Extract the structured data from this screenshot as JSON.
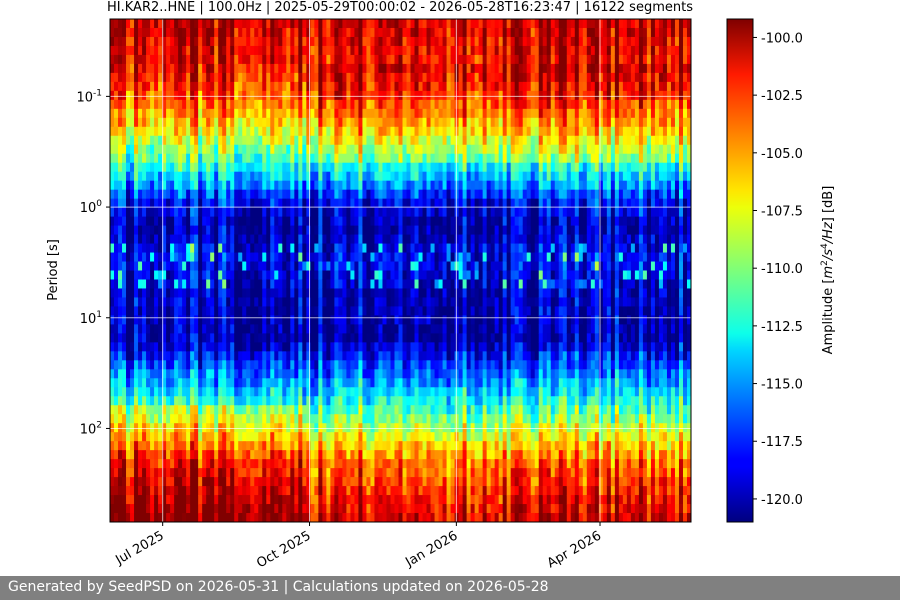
{
  "chart_data": {
    "type": "heatmap",
    "title": "HI.KAR2..HNE | 100.0Hz | 2025-05-29T00:00:02 - 2026-05-28T16:23:47 | 16122 segments",
    "xlabel": "",
    "ylabel": "Period [s]",
    "colorbar_label": "Amplitude [m^2/s^4/Hz] [dB]",
    "colorbar_ticks": [
      "-100.0",
      "-102.5",
      "-105.0",
      "-107.5",
      "-110.0",
      "-112.5",
      "-115.0",
      "-117.5",
      "-120.0"
    ],
    "colorbar_tick_values": [
      -100.0,
      -102.5,
      -105.0,
      -107.5,
      -110.0,
      -112.5,
      -115.0,
      -117.5,
      -120.0
    ],
    "clim": [
      -121,
      -99.2
    ],
    "colormap": "jet",
    "x_range": [
      "2025-05-29",
      "2026-05-28"
    ],
    "x_ticks": [
      {
        "label": "Jul 2025",
        "date": "2025-07-01"
      },
      {
        "label": "Oct 2025",
        "date": "2025-10-01"
      },
      {
        "label": "Jan 2026",
        "date": "2026-01-01"
      },
      {
        "label": "Apr 2026",
        "date": "2026-04-01"
      }
    ],
    "y_scale": "log",
    "y_inverted": true,
    "y_range": [
      0.02,
      700
    ],
    "y_ticks": [
      {
        "label": "10^-1",
        "value": 0.1
      },
      {
        "label": "10^0",
        "value": 1
      },
      {
        "label": "10^1",
        "value": 10
      },
      {
        "label": "10^2",
        "value": 100
      }
    ],
    "grid": true,
    "period_profile_db": [
      {
        "period": 0.02,
        "db": -100.5
      },
      {
        "period": 0.05,
        "db": -101.5
      },
      {
        "period": 0.1,
        "db": -103.5
      },
      {
        "period": 0.2,
        "db": -107.0
      },
      {
        "period": 0.5,
        "db": -113.0
      },
      {
        "period": 0.9,
        "db": -118.0
      },
      {
        "period": 1.5,
        "db": -120.0
      },
      {
        "period": 3.0,
        "db": -118.0
      },
      {
        "period": 6.0,
        "db": -119.5
      },
      {
        "period": 15.0,
        "db": -120.0
      },
      {
        "period": 35.0,
        "db": -115.0
      },
      {
        "period": 80.0,
        "db": -110.0
      },
      {
        "period": 200.0,
        "db": -104.0
      },
      {
        "period": 700.0,
        "db": -100.5
      }
    ]
  },
  "footer": {
    "text": "Generated by SeedPSD on 2026-05-31 | Calculations updated on 2026-05-28"
  }
}
